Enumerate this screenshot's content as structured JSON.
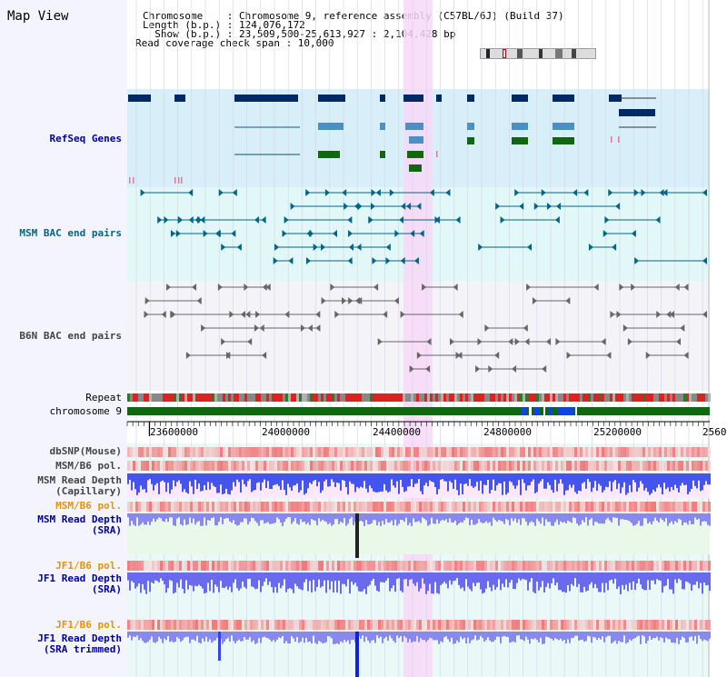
{
  "header": {
    "title": "Map View",
    "info_lines": [
      "Chromosome    : Chromosome 9, reference assembly (C57BL/6J) (Build 37)",
      "Length (b.p.) : 124,076,172",
      "  Show (b.p.) : 23,509,500-25,613,927 : 2,104,428 bp",
      "Read coverage check span : 10,000"
    ]
  },
  "tracks": {
    "refseq": "RefSeq Genes",
    "msm_bac": "MSM BAC end pairs",
    "b6n_bac": "B6N BAC end pairs",
    "repeat": "Repeat",
    "chromosome": "chromosome 9",
    "dbsnp": "dbSNP(Mouse)",
    "msm_b6_pol_1": "MSM/B6 pol.",
    "msm_depth_cap": "MSM Read Depth\n(Capillary)",
    "msm_b6_pol_2": "MSM/B6 pol.",
    "msm_depth_sra": "MSM Read Depth\n(SRA)",
    "jf1_b6_pol_1": "JF1/B6 pol.",
    "jf1_depth_sra": "JF1 Read Depth\n(SRA)",
    "jf1_b6_pol_2": "JF1/B6 pol.",
    "jf1_depth_trim": "JF1 Read Depth\n(SRA trimmed)"
  },
  "axis": {
    "ticks": [
      "23600000",
      "24000000",
      "24400000",
      "24800000",
      "25200000",
      "2560"
    ]
  },
  "colors": {
    "highlight": "#f8d8f8",
    "refseq_bg": "#d8effa",
    "msm_bg": "#e2f8f8",
    "b6n_bg": "#f4f4f8",
    "navy": "#002a66",
    "green": "#116611",
    "teal": "#006688"
  }
}
